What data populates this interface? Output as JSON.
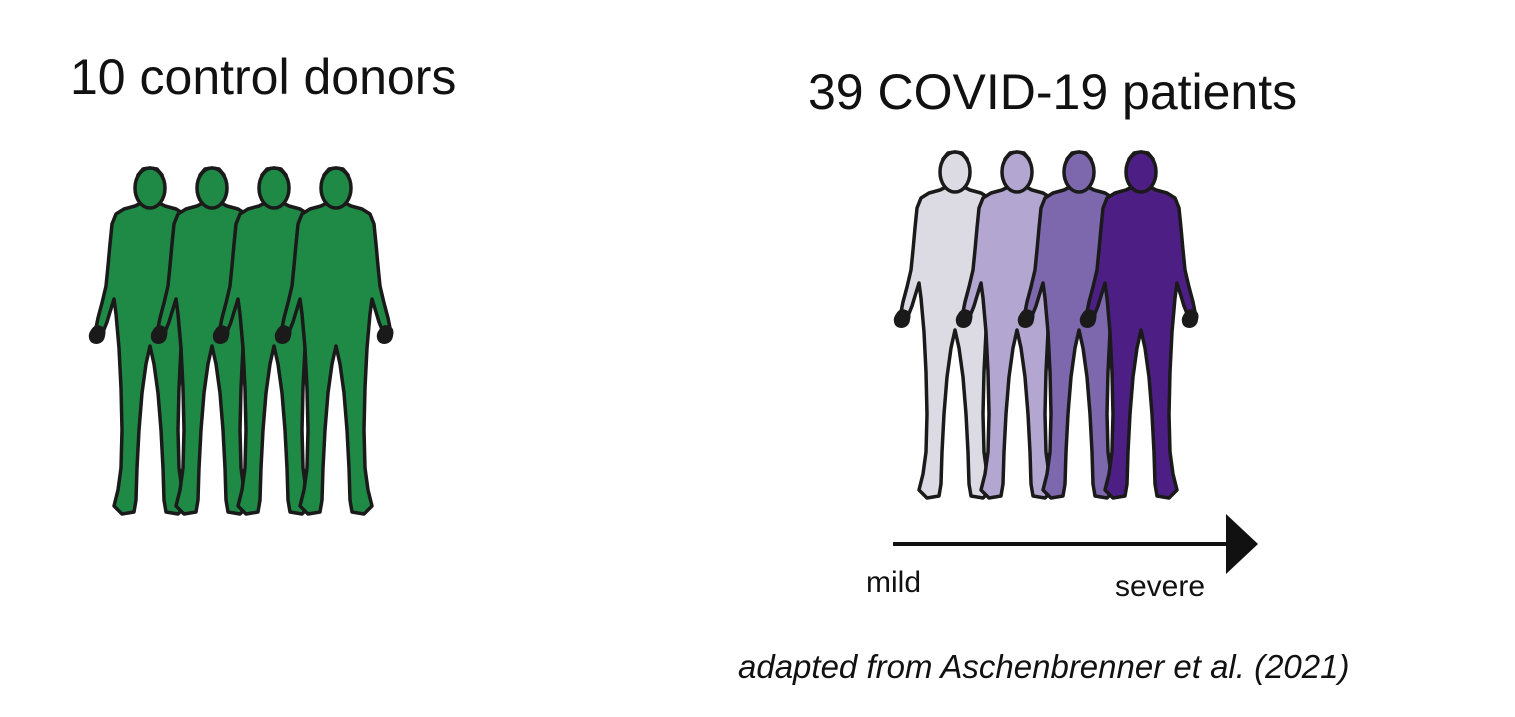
{
  "controls": {
    "title": "10 control donors",
    "figure_color": "#1f8a45",
    "figure_count": 4
  },
  "patients": {
    "title": "39 COVID-19 patients",
    "figure_colors": [
      "#dcdbe4",
      "#b3a7d1",
      "#7d68ad",
      "#4d1f85"
    ],
    "figure_count": 4,
    "severity_start": "mild",
    "severity_end": "severe"
  },
  "citation": "adapted from Aschenbrenner et al. (2021)",
  "colors": {
    "outline": "#1a1a1a",
    "text": "#111111"
  }
}
